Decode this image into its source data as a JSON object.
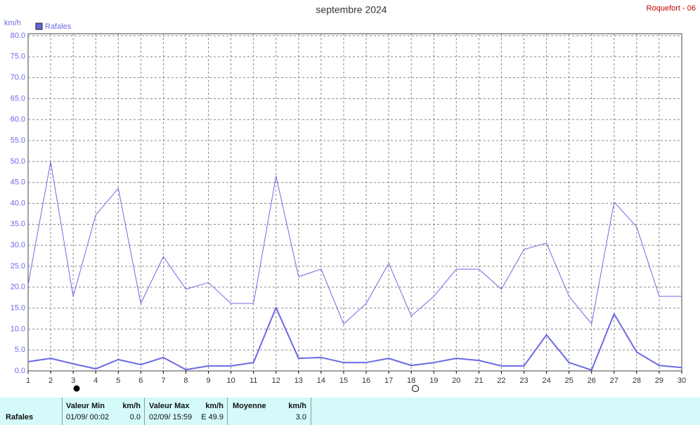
{
  "chart_data": {
    "type": "line",
    "title": "septembre 2024",
    "station": "Roquefort - 06",
    "y_unit": "km/h",
    "x": [
      1,
      2,
      3,
      4,
      5,
      6,
      7,
      8,
      9,
      10,
      11,
      12,
      13,
      14,
      15,
      16,
      17,
      18,
      19,
      20,
      21,
      22,
      23,
      24,
      25,
      26,
      27,
      28,
      29,
      30
    ],
    "series": [
      {
        "name": "Rafales",
        "color": "#6a6ae6",
        "line_width": 1,
        "values": [
          20.6,
          49.9,
          17.8,
          37.2,
          43.6,
          16.1,
          27.3,
          19.5,
          21.1,
          16.1,
          16.1,
          46.5,
          22.5,
          24.3,
          11.2,
          16.1,
          25.7,
          13.1,
          17.8,
          24.3,
          24.3,
          19.5,
          29.0,
          30.5,
          17.8,
          11.2,
          40.3,
          34.4,
          17.8,
          17.8
        ]
      },
      {
        "color": "#6a6ae6",
        "line_width": 2,
        "values": [
          2.2,
          3.0,
          1.7,
          0.5,
          2.7,
          1.5,
          3.2,
          0.3,
          1.2,
          1.2,
          2.0,
          15.1,
          3.0,
          3.2,
          2.0,
          2.0,
          3.0,
          1.3,
          2.0,
          3.0,
          2.5,
          1.2,
          1.2,
          8.6,
          2.0,
          0.2,
          13.6,
          4.5,
          1.3,
          0.8
        ]
      }
    ],
    "xlim": [
      1,
      30
    ],
    "xticks": [
      1,
      2,
      3,
      4,
      5,
      6,
      7,
      8,
      9,
      10,
      11,
      12,
      13,
      14,
      15,
      16,
      17,
      18,
      19,
      20,
      21,
      22,
      23,
      24,
      25,
      26,
      27,
      28,
      29,
      30
    ],
    "ylim": [
      0,
      80
    ],
    "yticks": [
      {
        "value": 0,
        "label": "0.0"
      },
      {
        "value": 5,
        "label": "5.0"
      },
      {
        "value": 10,
        "label": "10.0"
      },
      {
        "value": 15,
        "label": "15.0"
      },
      {
        "value": 20,
        "label": "20.0"
      },
      {
        "value": 25,
        "label": "25.0"
      },
      {
        "value": 30,
        "label": "30.0"
      },
      {
        "value": 35,
        "label": "35.0"
      },
      {
        "value": 40,
        "label": "40.0"
      },
      {
        "value": 45,
        "label": "45.0"
      },
      {
        "value": 50,
        "label": "50.0"
      },
      {
        "value": 55,
        "label": "55.0"
      },
      {
        "value": 60,
        "label": "60.0"
      },
      {
        "value": 65,
        "label": "65.0"
      },
      {
        "value": 70,
        "label": "70.0"
      },
      {
        "value": 75,
        "label": "75.0"
      },
      {
        "value": 80,
        "label": "80.0"
      }
    ],
    "grid": true
  },
  "stats": {
    "row_label": "Rafales",
    "columns": [
      {
        "header": "Valeur Min",
        "unit": "km/h",
        "date": "01/09/ 00:02",
        "value": "0.0"
      },
      {
        "header": "Valeur Max",
        "unit": "km/h",
        "date": "02/09/ 15:59",
        "value": "E 49.9"
      },
      {
        "header": "Moyenne",
        "unit": "km/h",
        "date": "",
        "value": "3.0"
      }
    ]
  }
}
